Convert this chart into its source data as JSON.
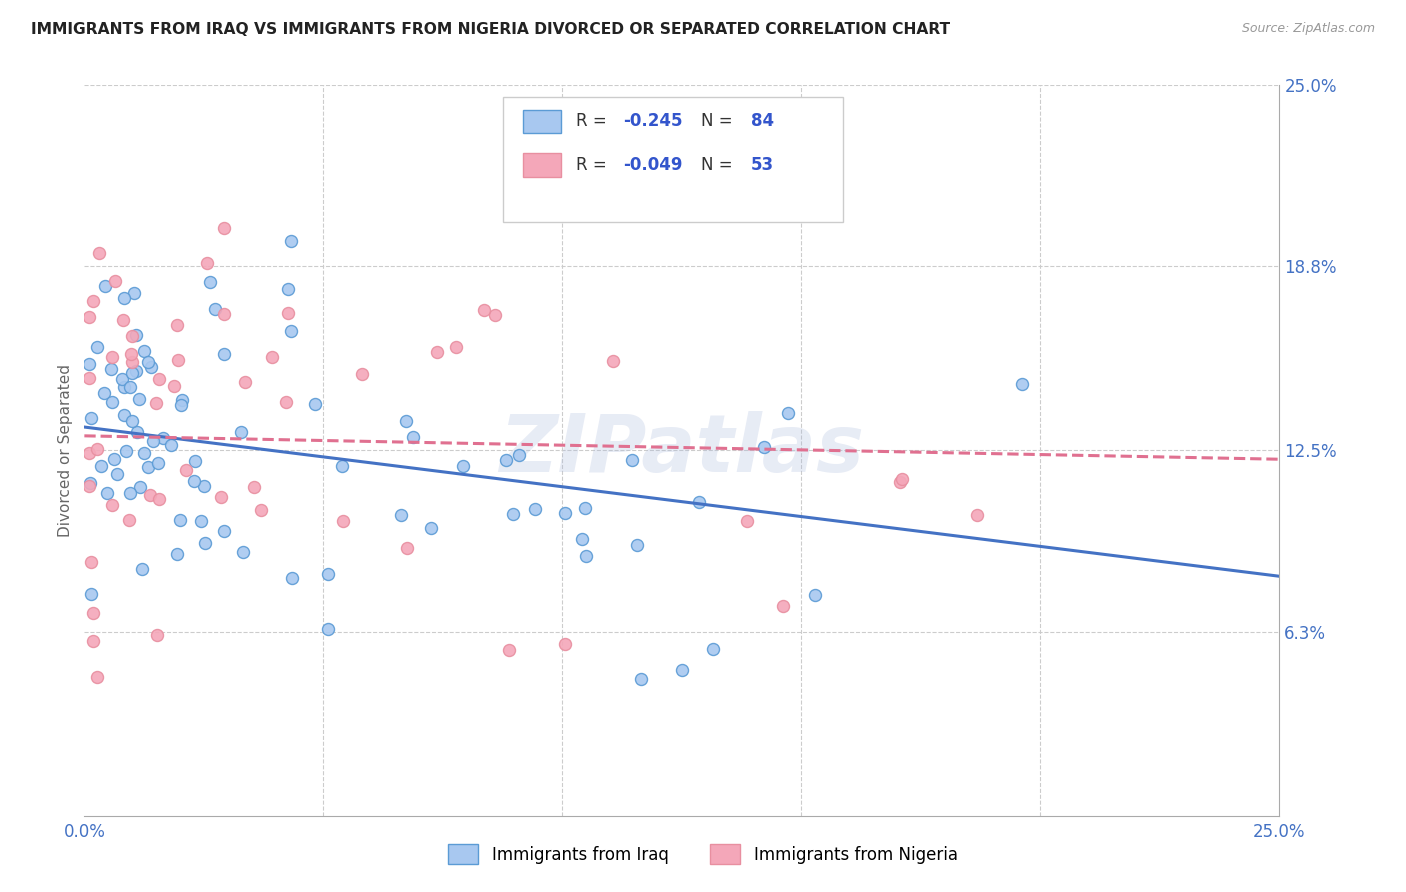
{
  "title": "IMMIGRANTS FROM IRAQ VS IMMIGRANTS FROM NIGERIA DIVORCED OR SEPARATED CORRELATION CHART",
  "source": "Source: ZipAtlas.com",
  "ylabel": "Divorced or Separated",
  "x_min": 0.0,
  "x_max": 0.25,
  "y_min": 0.0,
  "y_max": 0.25,
  "legend_iraq_R": "-0.245",
  "legend_iraq_N": "84",
  "legend_nigeria_R": "-0.049",
  "legend_nigeria_N": "53",
  "color_iraq": "#A8C8F0",
  "color_nigeria": "#F4A7B9",
  "color_iraq_edge": "#5B9BD5",
  "color_nigeria_edge": "#E88FA0",
  "color_iraq_line": "#4472C4",
  "color_nigeria_line": "#E07090",
  "color_r_value": "#3355CC",
  "color_n_value": "#3355CC",
  "color_axis_labels": "#4472C4",
  "background_color": "#FFFFFF",
  "watermark": "ZIPatlas",
  "iraq_line_y0": 0.133,
  "iraq_line_y1": 0.082,
  "nigeria_line_y0": 0.13,
  "nigeria_line_y1": 0.122
}
